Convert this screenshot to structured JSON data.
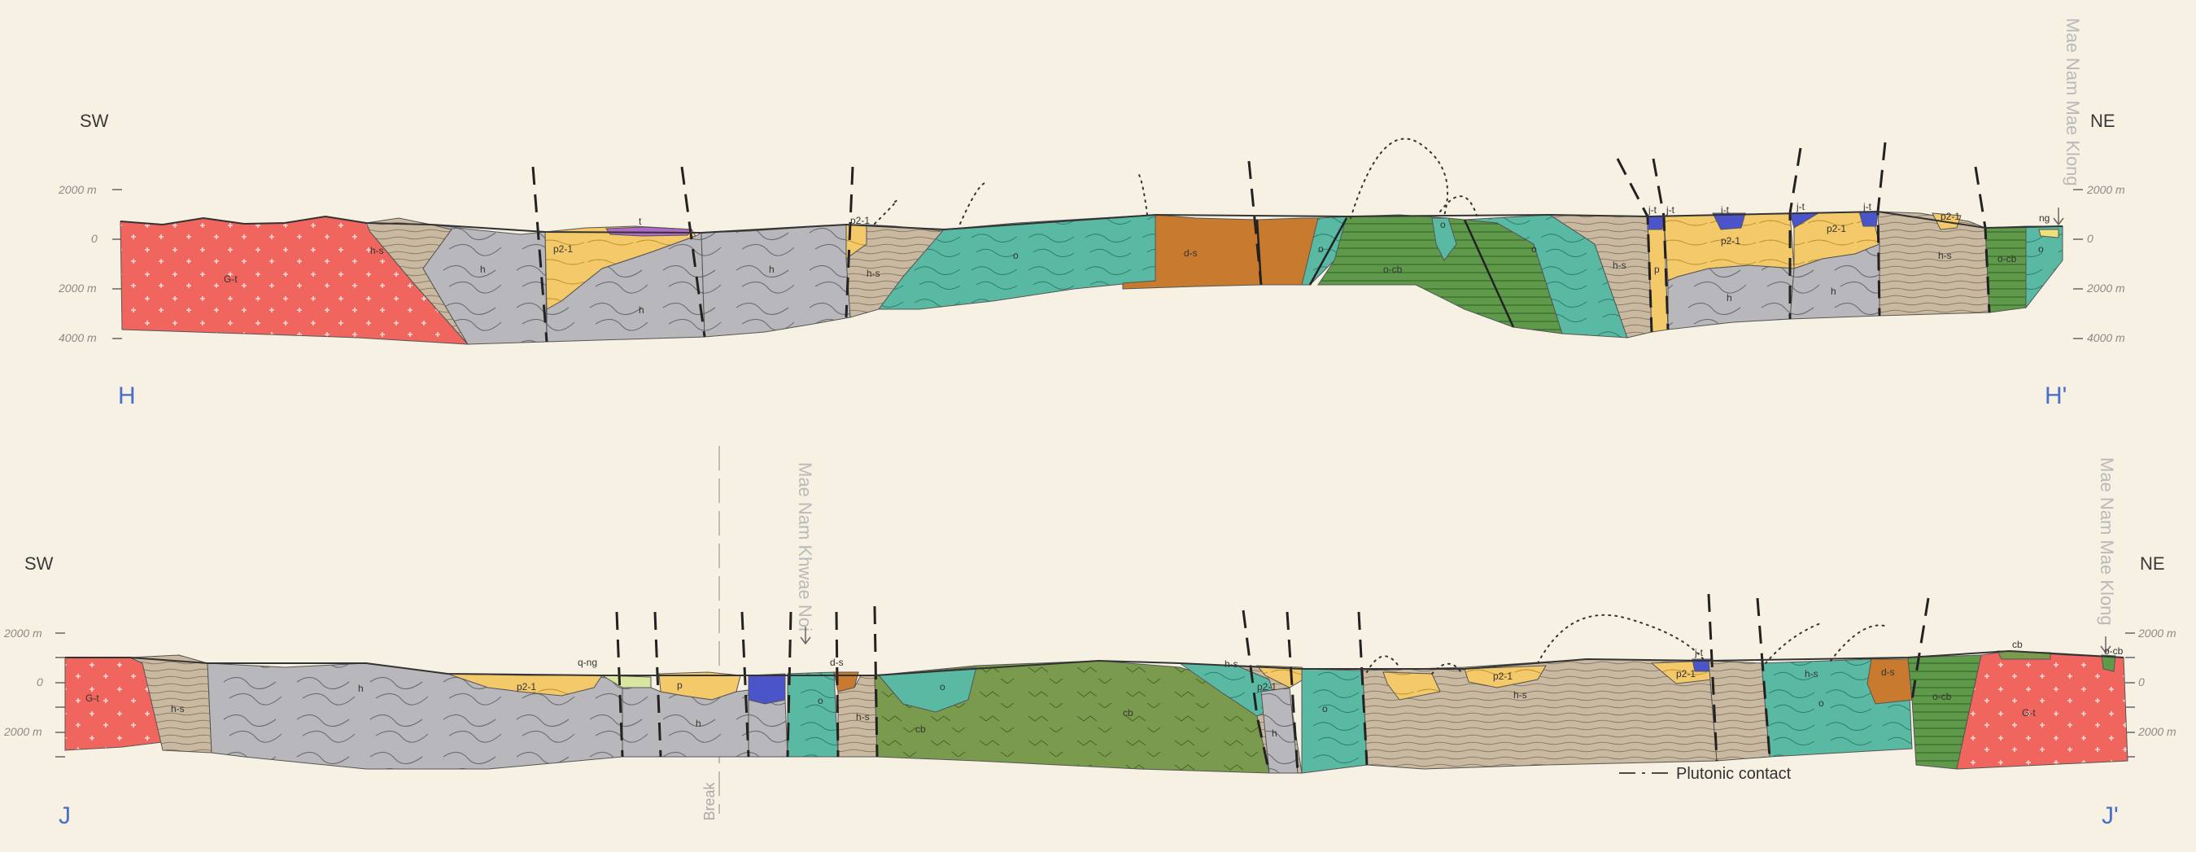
{
  "sections": {
    "top": {
      "sw": "SW",
      "ne": "NE",
      "start_label": "H",
      "end_label": "H'",
      "left_ticks": [
        "2000 m",
        "0",
        "2000 m",
        "4000 m"
      ],
      "right_ticks": [
        "2000 m",
        "0",
        "2000 m",
        "4000 m"
      ],
      "river": "Mae Nam Mae Klong",
      "units": [
        "G-t",
        "h-s",
        "h",
        "p2-1",
        "t",
        "h",
        "h",
        "p2-1",
        "h-s",
        "o",
        "d-s",
        "o",
        "o-cb",
        "o",
        "o",
        "h-s",
        "p",
        "j-t",
        "j-t",
        "j-t",
        "p2-1",
        "h",
        "j-t",
        "j-t",
        "p2-1",
        "h",
        "p2-1",
        "h-s",
        "o-cb",
        "o",
        "ng"
      ]
    },
    "bottom": {
      "sw": "SW",
      "ne": "NE",
      "start_label": "J",
      "end_label": "J'",
      "left_ticks": [
        "2000 m",
        "0",
        "2000 m"
      ],
      "right_ticks": [
        "2000 m",
        "0",
        "2000 m"
      ],
      "river_left": "Mae Nam Khwae Noi",
      "river_right": "Mae Nam Mae Klong",
      "break_label": "Break",
      "units": [
        "G-t",
        "h-s",
        "h",
        "p2-1",
        "q-ng",
        "p",
        "h",
        "o",
        "d-s",
        "h-s",
        "cb",
        "o",
        "cb",
        "h-s",
        "p2-1",
        "h",
        "o",
        "p2-1",
        "h-s",
        "j-t",
        "p2-1",
        "h-s",
        "o",
        "d-s",
        "o-cb",
        "cb",
        "G-t",
        "o-cb"
      ]
    }
  },
  "legend": {
    "plutonic_contact": "Plutonic contact"
  },
  "colors": {
    "granite": "#f0665f",
    "h": "#b8b8bc",
    "h_s": "#c9b9a1",
    "p2": "#f4c96a",
    "o": "#59b9a3",
    "d_s": "#c87a2f",
    "o_cb": "#5e9a4a",
    "cb": "#7a9a4d",
    "j_t": "#4b55c9",
    "t": "#b06ac9",
    "ng": "#efe07a",
    "background": "#f6f1e2"
  }
}
